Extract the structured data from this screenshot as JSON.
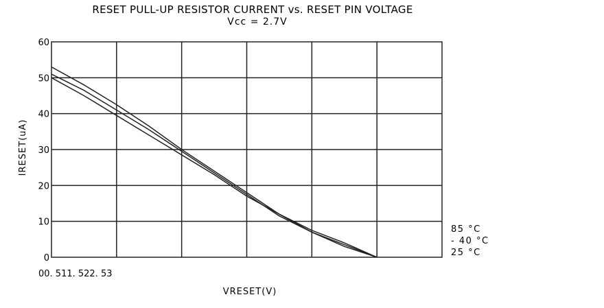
{
  "chart_data": {
    "type": "line",
    "title": "RESET PULL-UP RESISTOR CURRENT vs. RESET PIN VOLTAGE",
    "subtitle": "Vcc = 2.7V",
    "xlabel": "VRESET(V)",
    "ylabel": "IRESET(uA)",
    "xlim": [
      0,
      3
    ],
    "ylim": [
      0,
      60
    ],
    "x_ticks_text": "00. 511. 522. 53",
    "y_ticks": [
      0,
      10,
      20,
      30,
      40,
      50,
      60
    ],
    "grid": true,
    "legend_position": "right",
    "legend": [
      "85 °C",
      "- 40 °C",
      "25 °C"
    ],
    "series": [
      {
        "name": "85 °C",
        "x": [
          0,
          0.25,
          0.5,
          0.75,
          1.0,
          1.25,
          1.5,
          1.75,
          2.0,
          2.25,
          2.5
        ],
        "y": [
          53,
          48,
          42.5,
          36.5,
          30,
          24,
          18,
          12,
          7,
          3,
          0
        ]
      },
      {
        "name": "- 40 °C",
        "x": [
          0,
          0.25,
          0.5,
          0.75,
          1.0,
          1.25,
          1.5,
          1.75,
          2.0,
          2.25,
          2.5
        ],
        "y": [
          51,
          46.5,
          41,
          35.5,
          29.5,
          23.5,
          17.5,
          11.5,
          7,
          3.5,
          0
        ]
      },
      {
        "name": "25 °C",
        "x": [
          0,
          0.25,
          0.5,
          0.75,
          1.0,
          1.25,
          1.5,
          1.75,
          2.0,
          2.25,
          2.5
        ],
        "y": [
          50,
          45,
          39.5,
          34,
          28.5,
          23,
          17,
          12,
          7.5,
          4,
          0
        ]
      }
    ]
  }
}
